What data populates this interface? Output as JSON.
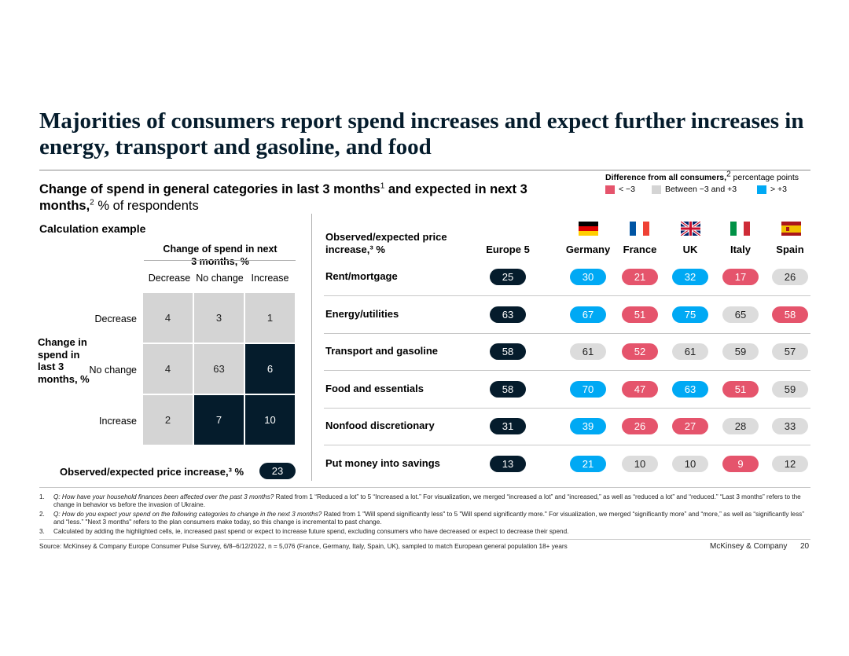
{
  "title": "Majorities of consumers report spend increases and expect further increases in energy, transport and gasoline, and food",
  "subtitle": {
    "bold": "Change of spend in general categories in last 3 months",
    "sup1": "1",
    "bold2": " and expected in next 3 months,",
    "sup2": "2",
    "rest": " % of respondents"
  },
  "legend": {
    "title_bold": "Difference from all consumers,",
    "title_sup": "2",
    "title_rest": " percentage points",
    "items": [
      {
        "label": "< −3",
        "color": "#e5546c"
      },
      {
        "label": "Between −3 and +3",
        "color": "#d4d4d4"
      },
      {
        "label": "> +3",
        "color": "#00a9f4"
      }
    ]
  },
  "calculation": {
    "title": "Calculation example",
    "col_header": "Change of spend in next 3 months, %",
    "col_labels": [
      "Decrease",
      "No change",
      "Increase"
    ],
    "row_header": "Change in spend in last 3 months, %",
    "row_labels": [
      "Decrease",
      "No change",
      "Increase"
    ],
    "matrix": [
      [
        4,
        3,
        1
      ],
      [
        4,
        63,
        6
      ],
      [
        2,
        7,
        10
      ]
    ],
    "highlighted": [
      [
        false,
        false,
        false
      ],
      [
        false,
        false,
        true
      ],
      [
        false,
        true,
        true
      ]
    ],
    "price_label": "Observed/expected price increase,³ %",
    "price_value": "23"
  },
  "chart_data": {
    "type": "table",
    "title": "Observed/expected price increase, %",
    "header_label": "Observed/expected price increase,³ %",
    "columns": [
      "Europe 5",
      "Germany",
      "France",
      "UK",
      "Italy",
      "Spain"
    ],
    "rows": [
      {
        "category": "Rent/mortgage",
        "values": [
          25,
          30,
          21,
          32,
          17,
          26
        ],
        "diff": [
          "base",
          "high",
          "low",
          "high",
          "low",
          "neutral"
        ]
      },
      {
        "category": "Energy/utilities",
        "values": [
          63,
          67,
          51,
          75,
          65,
          58
        ],
        "diff": [
          "base",
          "high",
          "low",
          "high",
          "neutral",
          "low"
        ]
      },
      {
        "category": "Transport and gasoline",
        "values": [
          58,
          61,
          52,
          61,
          59,
          57
        ],
        "diff": [
          "base",
          "neutral",
          "low",
          "neutral",
          "neutral",
          "neutral"
        ]
      },
      {
        "category": "Food and essentials",
        "values": [
          58,
          70,
          47,
          63,
          51,
          59
        ],
        "diff": [
          "base",
          "high",
          "low",
          "high",
          "low",
          "neutral"
        ]
      },
      {
        "category": "Nonfood discretionary",
        "values": [
          31,
          39,
          26,
          27,
          28,
          33
        ],
        "diff": [
          "base",
          "high",
          "low",
          "low",
          "neutral",
          "neutral"
        ]
      },
      {
        "category": "Put money into savings",
        "values": [
          13,
          21,
          10,
          10,
          9,
          12
        ],
        "diff": [
          "base",
          "high",
          "neutral",
          "neutral",
          "low",
          "neutral"
        ]
      }
    ]
  },
  "footnotes": [
    {
      "num": "1.",
      "q": "Q: How have your household finances been affected over the past 3 months?",
      "text": " Rated from 1 “Reduced a lot” to 5 “Increased a lot.” For visualization, we merged “increased a lot” and “increased,” as well as “reduced a lot” and “reduced.” “Last 3 months” refers to the change in behavior vs before the invasion of Ukraine."
    },
    {
      "num": "2.",
      "q": "Q: How do you expect your spend on the following categories to change in the next 3 months?",
      "text": " Rated from 1 \"Will spend significantly less\" to 5 \"Will spend significantly more.\" For visualization, we merged “significantly more” and “more,” as well as “significantly less” and “less.” \"Next 3 months\" refers to the plan consumers make today, so this change is incremental to past change."
    },
    {
      "num": "3.",
      "q": "",
      "text": "Calculated by adding the highlighted cells, ie, increased past spend or expect to increase future spend, excluding consumers who have decreased or expect to decrease their spend."
    }
  ],
  "source": "Source: McKinsey & Company Europe Consumer Pulse Survey, 6/8–6/12/2022, n = 5,076 (France, Germany, Italy, Spain, UK), sampled to match European general population 18+ years",
  "brand": "McKinsey & Company",
  "page_number": "20",
  "colors": {
    "navy": "#051c2c",
    "red": "#e5546c",
    "grey": "#dcdcdc",
    "blue": "#00a9f4"
  }
}
